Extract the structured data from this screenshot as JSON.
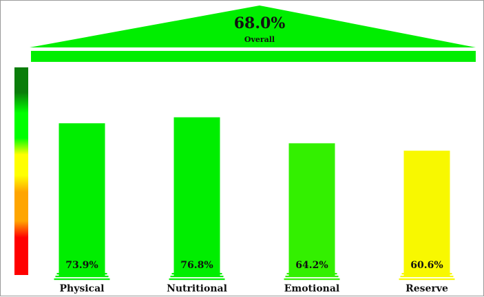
{
  "chart_data": {
    "type": "bar",
    "overall": {
      "value_text": "68.0%",
      "label": "Overall",
      "value": 68.0,
      "color": "#00ee00"
    },
    "categories": [
      "Physical",
      "Nutritional",
      "Emotional",
      "Reserve"
    ],
    "values": [
      73.9,
      76.8,
      64.2,
      60.6
    ],
    "value_labels": [
      "73.9%",
      "76.8%",
      "64.2%",
      "60.6%"
    ],
    "colors": [
      "#00ee00",
      "#00ee00",
      "#33f000",
      "#f8f800"
    ],
    "ylim": [
      0,
      100
    ],
    "scale_colors": [
      "#0b7d0b",
      "#00ff00",
      "#ffff00",
      "#ffa500",
      "#ff0000"
    ]
  }
}
